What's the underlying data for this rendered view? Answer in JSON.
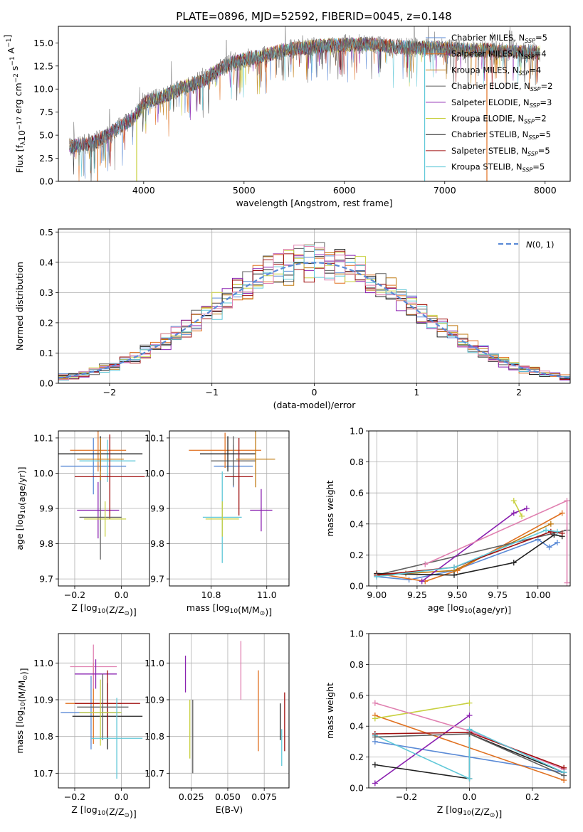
{
  "figure": {
    "title": "PLATE=0896, MJD=52592, FIBERID=0045, z=0.148"
  },
  "colors": {
    "grid": "#b0b0b0",
    "normal": "#5a8ad6",
    "models": [
      "#5a8ad6",
      "#e07020",
      "#c07a10",
      "#606060",
      "#8a20b0",
      "#c8d040",
      "#202020",
      "#a01010",
      "#60c8d8"
    ]
  },
  "chart_data": [
    {
      "id": "spectrum",
      "type": "line",
      "xlabel": "wavelength [Angstrom, rest frame]",
      "ylabel": "Flux [f_λ10^−17 erg cm^−2 s^−1 A^−1]",
      "xlim": [
        3150,
        8250
      ],
      "ylim": [
        0,
        16.8
      ],
      "xticks": [
        4000,
        5000,
        6000,
        7000,
        8000
      ],
      "yticks": [
        0.0,
        2.5,
        5.0,
        7.5,
        10.0,
        12.5,
        15.0
      ],
      "grid": false,
      "legend_position": "top-right",
      "continuum_x": [
        3300,
        3500,
        3700,
        3900,
        4000,
        4200,
        4400,
        4600,
        4800,
        5000,
        5200,
        5400,
        5600,
        5800,
        6000,
        6200,
        6400,
        6600,
        6800,
        7000,
        7200,
        7400,
        7600,
        7800,
        8000
      ],
      "continuum_y": [
        3.8,
        4.2,
        5.5,
        6.8,
        8.5,
        9.2,
        10.2,
        11.0,
        12.5,
        13.2,
        13.6,
        14.2,
        14.5,
        14.7,
        14.8,
        14.9,
        14.7,
        14.5,
        14.5,
        14.4,
        14.2,
        14.2,
        14.1,
        14.0,
        13.9
      ],
      "series": [
        {
          "name": "Chabrier MILES, N_SSP=5",
          "color": "#5a8ad6"
        },
        {
          "name": "Salpeter MILES, N_SSP=4",
          "color": "#e07020"
        },
        {
          "name": "Kroupa MILES, N_SSP=4",
          "color": "#c07a10"
        },
        {
          "name": "Chabrier ELODIE, N_SSP=2",
          "color": "#606060"
        },
        {
          "name": "Salpeter ELODIE, N_SSP=3",
          "color": "#8a20b0"
        },
        {
          "name": "Kroupa ELODIE, N_SSP=2",
          "color": "#c8d040"
        },
        {
          "name": "Chabrier STELIB, N_SSP=5",
          "color": "#202020"
        },
        {
          "name": "Salpeter STELIB, N_SSP=5",
          "color": "#a01010"
        },
        {
          "name": "Kroupa STELIB, N_SSP=5",
          "color": "#60c8d8"
        }
      ]
    },
    {
      "id": "residuals",
      "type": "line",
      "xlabel": "(data-model)/error",
      "ylabel": "Normed distribution",
      "xlim": [
        -2.5,
        2.5
      ],
      "ylim": [
        0,
        0.51
      ],
      "xticks": [
        -2,
        -1,
        0,
        1,
        2
      ],
      "yticks": [
        0.0,
        0.1,
        0.2,
        0.3,
        0.4,
        0.5
      ],
      "grid": true,
      "legend": "N(0,1)",
      "legend_position": "top-right",
      "bin_width": 0.1
    },
    {
      "id": "age-vs-z",
      "type": "scatter",
      "xlabel": "Z [log10(Z/Z☉)]",
      "ylabel": "age  [log10(age/yr)]",
      "xlim": [
        -0.27,
        0.12
      ],
      "ylim": [
        9.68,
        10.12
      ],
      "xticks": [
        -0.2,
        0.0
      ],
      "yticks": [
        9.7,
        9.8,
        9.9,
        10.0,
        10.1
      ],
      "grid": true,
      "points": [
        {
          "x": -0.12,
          "y": 10.02,
          "ex": 0.14,
          "ey": 0.08,
          "c": 0
        },
        {
          "x": -0.1,
          "y": 10.065,
          "ex": 0.12,
          "ey": 0.06,
          "c": 1
        },
        {
          "x": -0.06,
          "y": 10.035,
          "ex": 0.12,
          "ey": 0.06,
          "c": 8
        },
        {
          "x": -0.1,
          "y": 9.895,
          "ex": 0.09,
          "ey": 0.08,
          "c": 4
        },
        {
          "x": -0.09,
          "y": 10.055,
          "ex": 0.18,
          "ey": 0.05,
          "c": 6
        },
        {
          "x": -0.05,
          "y": 9.99,
          "ex": 0.15,
          "ey": 0.12,
          "c": 7
        },
        {
          "x": -0.09,
          "y": 9.875,
          "ex": 0.09,
          "ey": 0.12,
          "c": 3
        },
        {
          "x": -0.07,
          "y": 9.87,
          "ex": 0.09,
          "ey": 0.05,
          "c": 5
        },
        {
          "x": -0.09,
          "y": 10.04,
          "ex": 0.1,
          "ey": 0.06,
          "c": 2
        }
      ]
    },
    {
      "id": "age-vs-mass",
      "type": "scatter",
      "xlabel": "mass [log10(M/M☉)]",
      "ylabel": "",
      "xlim": [
        10.65,
        11.08
      ],
      "ylim": [
        9.68,
        10.12
      ],
      "xticks": [
        10.8,
        11.0
      ],
      "yticks": [
        9.7,
        9.8,
        9.9,
        10.0,
        10.1
      ],
      "grid": true,
      "points": [
        {
          "x": 10.88,
          "y": 10.02,
          "ex": 0.07,
          "ey": 0.06,
          "c": 0
        },
        {
          "x": 10.85,
          "y": 10.065,
          "ex": 0.13,
          "ey": 0.05,
          "c": 1
        },
        {
          "x": 10.88,
          "y": 10.035,
          "ex": 0.08,
          "ey": 0.07,
          "c": 3
        },
        {
          "x": 10.98,
          "y": 9.895,
          "ex": 0.04,
          "ey": 0.06,
          "c": 4
        },
        {
          "x": 10.86,
          "y": 10.055,
          "ex": 0.1,
          "ey": 0.05,
          "c": 6
        },
        {
          "x": 10.9,
          "y": 9.99,
          "ex": 0.05,
          "ey": 0.11,
          "c": 7
        },
        {
          "x": 10.84,
          "y": 9.875,
          "ex": 0.07,
          "ey": 0.13,
          "c": 8
        },
        {
          "x": 10.84,
          "y": 9.87,
          "ex": 0.06,
          "ey": 0.05,
          "c": 5
        },
        {
          "x": 10.96,
          "y": 10.04,
          "ex": 0.07,
          "ey": 0.08,
          "c": 2
        }
      ]
    },
    {
      "id": "weight-vs-age",
      "type": "line",
      "xlabel": "age  [log10(age/yr)]",
      "ylabel": "mass weight",
      "xlim": [
        8.95,
        10.2
      ],
      "ylim": [
        0,
        1.0
      ],
      "xticks": [
        9.0,
        9.25,
        9.5,
        9.75,
        10.0
      ],
      "yticks": [
        0.0,
        0.2,
        0.4,
        0.6,
        0.8,
        1.0
      ],
      "grid": true,
      "series": [
        {
          "c": 0,
          "x": [
            9.0,
            9.2,
            9.48,
            10.0,
            10.07,
            10.12
          ],
          "y": [
            0.06,
            0.04,
            0.1,
            0.3,
            0.25,
            0.28
          ]
        },
        {
          "c": 1,
          "x": [
            9.0,
            9.3,
            9.5,
            10.15
          ],
          "y": [
            0.08,
            0.03,
            0.1,
            0.47
          ]
        },
        {
          "c": 2,
          "x": [
            9.0,
            9.18,
            9.48,
            10.08
          ],
          "y": [
            0.07,
            0.08,
            0.1,
            0.4
          ]
        },
        {
          "c": 3,
          "x": [
            9.0,
            10.18
          ],
          "y": [
            0.07,
            0.36
          ]
        },
        {
          "c": 4,
          "x": [
            9.28,
            9.85,
            9.93
          ],
          "y": [
            0.03,
            0.47,
            0.5
          ]
        },
        {
          "c": 5,
          "x": [
            9.85,
            9.9
          ],
          "y": [
            0.55,
            0.45
          ]
        },
        {
          "c": 6,
          "x": [
            9.0,
            9.48,
            9.85,
            10.1,
            10.15
          ],
          "y": [
            0.08,
            0.07,
            0.15,
            0.33,
            0.32
          ]
        },
        {
          "c": 7,
          "x": [
            9.0,
            9.48,
            10.08,
            10.15
          ],
          "y": [
            0.07,
            0.12,
            0.35,
            0.34
          ]
        },
        {
          "c": 8,
          "x": [
            9.0,
            9.48,
            10.05,
            10.12
          ],
          "y": [
            0.06,
            0.12,
            0.36,
            0.35
          ]
        },
        {
          "c": 9,
          "x": [
            9.3,
            10.18,
            10.18
          ],
          "y": [
            0.14,
            0.55,
            0.02
          ]
        }
      ]
    },
    {
      "id": "mass-vs-z",
      "type": "scatter",
      "xlabel": "Z [log10(Z/Z☉)]",
      "ylabel": "mass [log10(M/M☉)]",
      "xlim": [
        -0.27,
        0.12
      ],
      "ylim": [
        10.66,
        11.08
      ],
      "xticks": [
        -0.2,
        0.0
      ],
      "yticks": [
        10.7,
        10.8,
        10.9,
        11.0
      ],
      "grid": true,
      "points": [
        {
          "x": -0.13,
          "y": 10.865,
          "ex": 0.13,
          "ey": 0.1,
          "c": 0
        },
        {
          "x": -0.12,
          "y": 10.89,
          "ex": 0.12,
          "ey": 0.11,
          "c": 1
        },
        {
          "x": -0.12,
          "y": 10.99,
          "ex": 0.1,
          "ey": 0.06,
          "c": 9
        },
        {
          "x": -0.11,
          "y": 10.97,
          "ex": 0.09,
          "ey": 0.04,
          "c": 4
        },
        {
          "x": -0.06,
          "y": 10.855,
          "ex": 0.15,
          "ey": 0.09,
          "c": 6
        },
        {
          "x": -0.06,
          "y": 10.89,
          "ex": 0.14,
          "ey": 0.09,
          "c": 7
        },
        {
          "x": -0.08,
          "y": 10.88,
          "ex": 0.11,
          "ey": 0.09,
          "c": 3
        },
        {
          "x": -0.09,
          "y": 10.865,
          "ex": 0.09,
          "ey": 0.09,
          "c": 5
        },
        {
          "x": -0.02,
          "y": 10.795,
          "ex": 0.11,
          "ey": 0.11,
          "c": 8
        }
      ]
    },
    {
      "id": "mass-vs-ebv",
      "type": "scatter",
      "xlabel": "E(B-V)",
      "ylabel": "",
      "xlim": [
        0.01,
        0.092
      ],
      "ylim": [
        10.66,
        11.08
      ],
      "xticks": [
        0.025,
        0.05,
        0.075
      ],
      "yticks": [
        10.7,
        10.8,
        10.9,
        11.0
      ],
      "grid": true,
      "points": [
        {
          "x": 0.021,
          "y": 10.97,
          "ey": 0.05,
          "c": 4
        },
        {
          "x": 0.024,
          "y": 10.82,
          "ey": 0.08,
          "c": 5
        },
        {
          "x": 0.026,
          "y": 10.8,
          "ey": 0.1,
          "c": 3
        },
        {
          "x": 0.059,
          "y": 10.98,
          "ey": 0.08,
          "c": 9
        },
        {
          "x": 0.071,
          "y": 10.87,
          "ey": 0.11,
          "c": 1
        },
        {
          "x": 0.086,
          "y": 10.84,
          "ey": 0.05,
          "c": 6
        },
        {
          "x": 0.087,
          "y": 10.77,
          "ey": 0.05,
          "c": 8
        },
        {
          "x": 0.089,
          "y": 10.84,
          "ey": 0.08,
          "c": 7
        }
      ]
    },
    {
      "id": "weight-vs-z",
      "type": "line",
      "xlabel": "Z [log10(Z/Z☉)]",
      "ylabel": "mass weight",
      "xlim": [
        -0.32,
        0.32
      ],
      "ylim": [
        0,
        1.0
      ],
      "xticks": [
        -0.2,
        0.0,
        0.2
      ],
      "yticks": [
        0.0,
        0.2,
        0.4,
        0.6,
        0.8,
        1.0
      ],
      "grid": true,
      "series": [
        {
          "c": 0,
          "x": [
            -0.3,
            0.3
          ],
          "y": [
            0.3,
            0.1
          ]
        },
        {
          "c": 1,
          "x": [
            -0.3,
            0.3
          ],
          "y": [
            0.47,
            0.05
          ]
        },
        {
          "c": 4,
          "x": [
            -0.3,
            0.0
          ],
          "y": [
            0.03,
            0.47
          ]
        },
        {
          "c": 5,
          "x": [
            -0.3,
            0.0
          ],
          "y": [
            0.45,
            0.55
          ]
        },
        {
          "c": 9,
          "x": [
            -0.3,
            0.0,
            0.3
          ],
          "y": [
            0.55,
            0.37,
            0.12
          ]
        },
        {
          "c": 6,
          "x": [
            -0.3,
            0.0,
            0.0,
            0.3
          ],
          "y": [
            0.15,
            0.06,
            0.35,
            0.1
          ]
        },
        {
          "c": 7,
          "x": [
            -0.3,
            0.0,
            0.3
          ],
          "y": [
            0.35,
            0.36,
            0.13
          ]
        },
        {
          "c": 8,
          "x": [
            -0.3,
            0.0,
            0.0,
            0.3
          ],
          "y": [
            0.34,
            0.06,
            0.38,
            0.1
          ]
        },
        {
          "c": 3,
          "x": [
            -0.3,
            0.0,
            0.3
          ],
          "y": [
            0.33,
            0.35,
            0.08
          ]
        }
      ]
    }
  ]
}
